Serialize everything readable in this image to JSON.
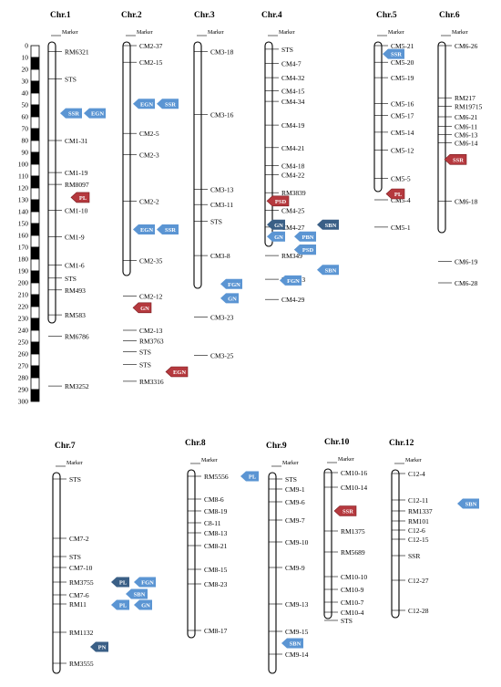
{
  "scale": {
    "ticks": [
      "0",
      "10",
      "20",
      "30",
      "40",
      "50",
      "60",
      "70",
      "80",
      "90",
      "100",
      "110",
      "120",
      "130",
      "140",
      "150",
      "160",
      "170",
      "180",
      "190",
      "200",
      "210",
      "220",
      "230",
      "240",
      "250",
      "260",
      "270",
      "280",
      "290",
      "300"
    ]
  },
  "colors": {
    "blue_tag": "#5b95d3",
    "red_tag": "#b5393e",
    "dark_tag": "#3a5f86",
    "tag_text": "#ffffff",
    "chrom_outline": "#000000"
  },
  "chromosomes": [
    {
      "id": "chr1",
      "name": "Chr.1",
      "marker_header": "Marker",
      "markers": [
        {
          "label": "RM6321",
          "pos": 5
        },
        {
          "label": "STS",
          "pos": 28
        },
        {
          "label": "CM1-31",
          "pos": 80
        },
        {
          "label": "CM1-19",
          "pos": 107
        },
        {
          "label": "RM8097",
          "pos": 117
        },
        {
          "label": "CM1-10",
          "pos": 139
        },
        {
          "label": "CM1-9",
          "pos": 161
        },
        {
          "label": "CM1-6",
          "pos": 185
        },
        {
          "label": "STS",
          "pos": 196
        },
        {
          "label": "RM493",
          "pos": 206
        },
        {
          "label": "RM583",
          "pos": 227
        },
        {
          "label": "RM6786",
          "pos": 245
        },
        {
          "label": "RM3252",
          "pos": 287
        }
      ],
      "traits": [
        {
          "label": "SSR",
          "color": "blue",
          "pos": 57
        },
        {
          "label": "EGN",
          "color": "blue",
          "pos": 57
        },
        {
          "label": "PL",
          "color": "red",
          "pos": 128
        }
      ]
    },
    {
      "id": "chr2",
      "name": "Chr.2",
      "marker_header": "Marker",
      "markers": [
        {
          "label": "CM2-37",
          "pos": 0
        },
        {
          "label": "CM2-15",
          "pos": 14
        },
        {
          "label": "CM2-5",
          "pos": 74
        },
        {
          "label": "CM2-3",
          "pos": 92
        },
        {
          "label": "CM2-2",
          "pos": 131
        },
        {
          "label": "CM2-35",
          "pos": 181
        },
        {
          "label": "CM2-12",
          "pos": 211
        },
        {
          "label": "CM2-13",
          "pos": 240
        },
        {
          "label": "RM3763",
          "pos": 249
        },
        {
          "label": "STS",
          "pos": 258
        },
        {
          "label": "STS",
          "pos": 269
        },
        {
          "label": "RM3316",
          "pos": 283
        }
      ],
      "traits": [
        {
          "label": "EGN",
          "color": "blue",
          "pos": 49
        },
        {
          "label": "SSR",
          "color": "blue",
          "pos": 49
        },
        {
          "label": "EGN",
          "color": "blue",
          "pos": 155
        },
        {
          "label": "SSR",
          "color": "blue",
          "pos": 155
        },
        {
          "label": "GN",
          "color": "red",
          "pos": 221
        },
        {
          "label": "EGN",
          "color": "red",
          "pos": 275
        }
      ]
    },
    {
      "id": "chr3",
      "name": "Chr.3",
      "marker_header": "Marker",
      "markers": [
        {
          "label": "CM3-18",
          "pos": 5
        },
        {
          "label": "CM3-16",
          "pos": 58
        },
        {
          "label": "CM3-13",
          "pos": 121
        },
        {
          "label": "CM3-11",
          "pos": 134
        },
        {
          "label": "STS",
          "pos": 148
        },
        {
          "label": "CM3-8",
          "pos": 177
        },
        {
          "label": "CM3-23",
          "pos": 229
        },
        {
          "label": "CM3-25",
          "pos": 261
        }
      ],
      "traits": [
        {
          "label": "FGN",
          "color": "blue",
          "pos": 201
        },
        {
          "label": "GN",
          "color": "blue",
          "pos": 213
        }
      ]
    },
    {
      "id": "chr4",
      "name": "Chr.4",
      "marker_header": "Marker",
      "markers": [
        {
          "label": "STS",
          "pos": 3
        },
        {
          "label": "CM4-7",
          "pos": 15
        },
        {
          "label": "CM4-32",
          "pos": 27
        },
        {
          "label": "CM4-15",
          "pos": 38
        },
        {
          "label": "CM4-34",
          "pos": 47
        },
        {
          "label": "CM4-19",
          "pos": 67
        },
        {
          "label": "CM4-21",
          "pos": 86
        },
        {
          "label": "CM4-18",
          "pos": 101
        },
        {
          "label": "CM4-22",
          "pos": 109
        },
        {
          "label": "RM3839",
          "pos": 124
        },
        {
          "label": "CM4-25",
          "pos": 139
        },
        {
          "label": "CM4-27",
          "pos": 153
        },
        {
          "label": "RM349",
          "pos": 177
        },
        {
          "label": "RM1113",
          "pos": 197
        },
        {
          "label": "CM4-29",
          "pos": 214
        }
      ],
      "traits": [
        {
          "label": "PSD",
          "color": "red",
          "pos": 131
        },
        {
          "label": "SBN",
          "color": "dark",
          "pos": 151
        },
        {
          "label": "GN",
          "color": "dark",
          "pos": 151
        },
        {
          "label": "PBN",
          "color": "blue",
          "pos": 161
        },
        {
          "label": "GN",
          "color": "blue",
          "pos": 161
        },
        {
          "label": "PBN",
          "color": "dark",
          "pos": 172
        },
        {
          "label": "PSD",
          "color": "blue",
          "pos": 172
        },
        {
          "label": "SBN",
          "color": "blue",
          "pos": 189
        },
        {
          "label": "FGN",
          "color": "blue",
          "pos": 198
        }
      ]
    },
    {
      "id": "chr5",
      "name": "Chr.5",
      "marker_header": "Marker",
      "markers": [
        {
          "label": "CM5-21",
          "pos": 0
        },
        {
          "label": "CM5-20",
          "pos": 14
        },
        {
          "label": "CM5-19",
          "pos": 27
        },
        {
          "label": "CM5-16",
          "pos": 49
        },
        {
          "label": "CM5-17",
          "pos": 59
        },
        {
          "label": "CM5-14",
          "pos": 73
        },
        {
          "label": "CM5-12",
          "pos": 88
        },
        {
          "label": "CM5-5",
          "pos": 112
        },
        {
          "label": "CM5-4",
          "pos": 130
        },
        {
          "label": "CM5-1",
          "pos": 153
        }
      ],
      "traits": [
        {
          "label": "SSR",
          "color": "blue",
          "pos": 7
        },
        {
          "label": "PL",
          "color": "red",
          "pos": 125
        }
      ]
    },
    {
      "id": "chr6",
      "name": "Chr.6",
      "marker_header": "Marker",
      "markers": [
        {
          "label": "CM6-26",
          "pos": 0
        },
        {
          "label": "RM217",
          "pos": 44
        },
        {
          "label": "RM19715",
          "pos": 51
        },
        {
          "label": "CM6-21",
          "pos": 60
        },
        {
          "label": "CM6-11",
          "pos": 68
        },
        {
          "label": "CM6-13",
          "pos": 75
        },
        {
          "label": "CM6-14",
          "pos": 82
        },
        {
          "label": "CM6-18",
          "pos": 131
        },
        {
          "label": "CM6-19",
          "pos": 182
        },
        {
          "label": "CM6-28",
          "pos": 200
        }
      ],
      "traits": [
        {
          "label": "SSR",
          "color": "red",
          "pos": 96
        }
      ]
    },
    {
      "id": "chr7",
      "name": "Chr.7",
      "marker_header": "Marker",
      "markers": [
        {
          "label": "STS",
          "pos": 3
        },
        {
          "label": "CM7-2",
          "pos": 68
        },
        {
          "label": "STS",
          "pos": 88
        },
        {
          "label": "CM7-10",
          "pos": 100
        },
        {
          "label": "RM3755",
          "pos": 116
        },
        {
          "label": "CM7-6",
          "pos": 130
        },
        {
          "label": "RM11",
          "pos": 140
        },
        {
          "label": "RM1132",
          "pos": 171
        },
        {
          "label": "RM3555",
          "pos": 205
        }
      ],
      "traits": [
        {
          "label": "PL",
          "color": "dark",
          "pos": 116
        },
        {
          "label": "FGN",
          "color": "blue",
          "pos": 116
        },
        {
          "label": "SBN",
          "color": "blue",
          "pos": 129
        },
        {
          "label": "PL",
          "color": "blue",
          "pos": 141
        },
        {
          "label": "GN",
          "color": "blue",
          "pos": 141
        },
        {
          "label": "PN",
          "color": "dark",
          "pos": 187
        }
      ]
    },
    {
      "id": "chr8",
      "name": "Chr.8",
      "marker_header": "Marker",
      "markers": [
        {
          "label": "RM5556",
          "pos": 3
        },
        {
          "label": "CM8-6",
          "pos": 28
        },
        {
          "label": "CM8-19",
          "pos": 41
        },
        {
          "label": "C8-11",
          "pos": 54
        },
        {
          "label": "CM8-13",
          "pos": 65
        },
        {
          "label": "CM8-21",
          "pos": 79
        },
        {
          "label": "CM8-15",
          "pos": 105
        },
        {
          "label": "CM8-23",
          "pos": 121
        },
        {
          "label": "CM8-17",
          "pos": 172
        }
      ],
      "traits": [
        {
          "label": "PL",
          "color": "blue",
          "pos": 3
        }
      ]
    },
    {
      "id": "chr9",
      "name": "Chr.9",
      "marker_header": "Marker",
      "markers": [
        {
          "label": "STS",
          "pos": 3
        },
        {
          "label": "CM9-1",
          "pos": 14
        },
        {
          "label": "CM9-6",
          "pos": 28
        },
        {
          "label": "CM9-7",
          "pos": 48
        },
        {
          "label": "CM9-10",
          "pos": 72
        },
        {
          "label": "CM9-9",
          "pos": 100
        },
        {
          "label": "CM9-13",
          "pos": 140
        },
        {
          "label": "CM9-15",
          "pos": 170
        },
        {
          "label": "CM9-14",
          "pos": 195
        }
      ],
      "traits": [
        {
          "label": "SBN",
          "color": "blue",
          "pos": 183
        }
      ]
    },
    {
      "id": "chr10",
      "name": "Chr.10",
      "marker_header": "Marker",
      "markers": [
        {
          "label": "CM10-16",
          "pos": 0
        },
        {
          "label": "CM10-14",
          "pos": 16
        },
        {
          "label": "RM1375",
          "pos": 64
        },
        {
          "label": "RM5689",
          "pos": 87
        },
        {
          "label": "CM10-10",
          "pos": 114
        },
        {
          "label": "CM10-9",
          "pos": 128
        },
        {
          "label": "CM10-7",
          "pos": 142
        },
        {
          "label": "CM10-4",
          "pos": 153
        },
        {
          "label": "STS",
          "pos": 162
        }
      ],
      "traits": [
        {
          "label": "SSR",
          "color": "red",
          "pos": 42
        }
      ]
    },
    {
      "id": "chr12",
      "name": "Chr.12",
      "marker_header": "Marker",
      "markers": [
        {
          "label": "C12-4",
          "pos": 0
        },
        {
          "label": "C12-11",
          "pos": 29
        },
        {
          "label": "RM1337",
          "pos": 41
        },
        {
          "label": "RM101",
          "pos": 52
        },
        {
          "label": "C12-6",
          "pos": 62
        },
        {
          "label": "C12-15",
          "pos": 72
        },
        {
          "label": "SSR",
          "pos": 90
        },
        {
          "label": "C12-27",
          "pos": 117
        },
        {
          "label": "C12-28",
          "pos": 150
        }
      ],
      "traits": [
        {
          "label": "SBN",
          "color": "blue",
          "pos": 33
        }
      ]
    }
  ]
}
